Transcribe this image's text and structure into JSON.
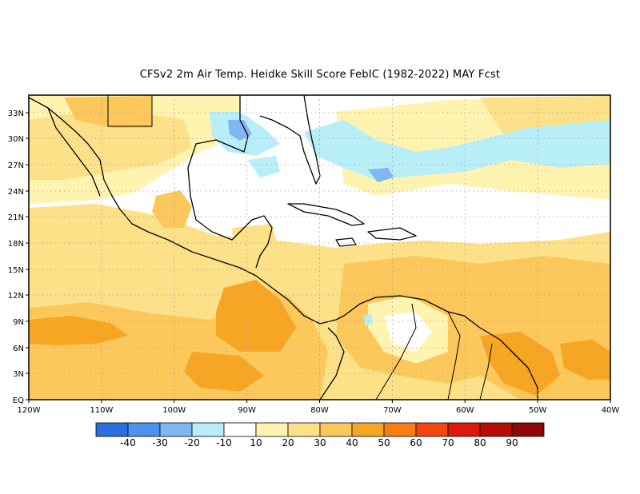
{
  "title": "CFSv2  2m Air Temp. Heidke Skill Score FebIC (1982-2022) MAY Fcst",
  "map": {
    "lat_labels": [
      "33N",
      "30N",
      "27N",
      "24N",
      "21N",
      "18N",
      "15N",
      "12N",
      "9N",
      "6N",
      "3N",
      "EQ"
    ],
    "lon_labels": [
      "120W",
      "110W",
      "100W",
      "90W",
      "80W",
      "70W",
      "60W",
      "50W",
      "40W"
    ]
  },
  "colorbar": {
    "colors": [
      "#2a6ee0",
      "#4b91ef",
      "#7fb7f5",
      "#b8eef8",
      "#ffffff",
      "#fff3b0",
      "#fde189",
      "#fcc85c",
      "#f6a623",
      "#f77e12",
      "#f44710",
      "#dd1a0a",
      "#b70d06",
      "#8f0705"
    ],
    "labels": [
      "-40",
      "-30",
      "-20",
      "-10",
      "10",
      "20",
      "30",
      "40",
      "50",
      "60",
      "70",
      "80",
      "90"
    ]
  },
  "colors": {
    "c10": "#fff3b0",
    "c20": "#fde189",
    "c30": "#fcc85c",
    "c40": "#f6a623",
    "n10": "#b8eef8",
    "n20": "#7fb7f5"
  }
}
